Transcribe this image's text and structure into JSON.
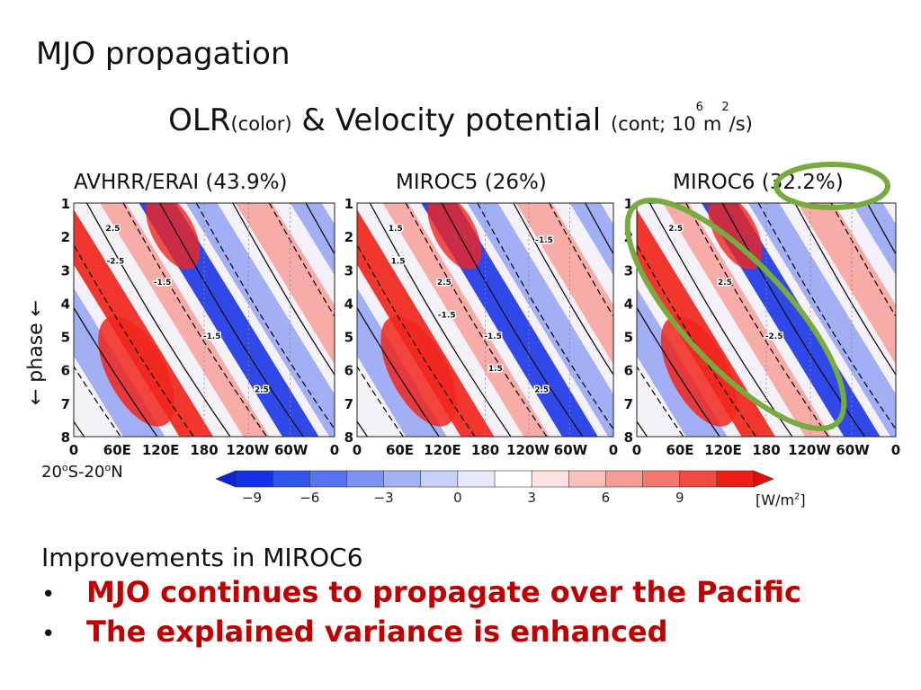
{
  "slide_title": "MJO propagation",
  "subtitle": {
    "olr": "OLR",
    "olr_note": "(color)",
    "amp": "&",
    "vp": "Velocity potential",
    "vp_note_pre": "(cont; 10",
    "vp_note_exp": "6",
    "vp_note_mid": "m",
    "vp_note_exp2": "2",
    "vp_note_post": "/s)"
  },
  "y_axis_label": "← phase ←",
  "region_label": {
    "pre": "20",
    "sup1": "o",
    "mid": "S-20",
    "sup2": "o",
    "post": "N"
  },
  "unit_label": {
    "pre": "[W/m",
    "sup": "2",
    "post": "]"
  },
  "improvements_heading": "Improvements in MIROC6",
  "bullets": [
    "MJO continues to propagate over the Pacific",
    "The explained variance is enhanced"
  ],
  "highlight_color": "#77ab3f",
  "chart_data": [
    {
      "type": "heatmap",
      "title": "AVHRR/ERAI (43.9%)",
      "y_ticks": [
        "1",
        "2",
        "3",
        "4",
        "5",
        "6",
        "7",
        "8"
      ],
      "x_ticks": [
        "0",
        "60E",
        "120E",
        "180",
        "120W",
        "60W",
        "0"
      ],
      "contour_labels": [
        "2.5",
        "-1.5",
        "-1.5",
        "2.5",
        "-2.5"
      ]
    },
    {
      "type": "heatmap",
      "title": "MIROC5 (26%)",
      "y_ticks": [
        "1",
        "2",
        "3",
        "4",
        "5",
        "6",
        "7",
        "8"
      ],
      "x_ticks": [
        "0",
        "60E",
        "120E",
        "180",
        "120W",
        "60W",
        "0"
      ],
      "contour_labels": [
        "1.5",
        "2.5",
        "-1.5",
        "2.5",
        "1.5",
        "-1.5",
        "1.5",
        "-1.5"
      ]
    },
    {
      "type": "heatmap",
      "title": "MIROC6 (32.2%)",
      "y_ticks": [
        "1",
        "2",
        "3",
        "4",
        "5",
        "6",
        "7",
        "8"
      ],
      "x_ticks": [
        "0",
        "60E",
        "120E",
        "180",
        "120W",
        "60W",
        "0"
      ],
      "contour_labels": [
        "2.5",
        "2.5",
        "-2.5"
      ]
    }
  ],
  "colorbar": {
    "ticks": [
      "−9",
      "−6",
      "−3",
      "0",
      "3",
      "6",
      "9"
    ],
    "colors": [
      "#1430e8",
      "#2f55ee",
      "#5574f0",
      "#7c93f3",
      "#a3b2f6",
      "#c8d1f9",
      "#e6eafc",
      "#ffffff",
      "#fde2e0",
      "#fbc1bc",
      "#f89d96",
      "#f5776e",
      "#f24a42",
      "#ee1c16"
    ]
  }
}
